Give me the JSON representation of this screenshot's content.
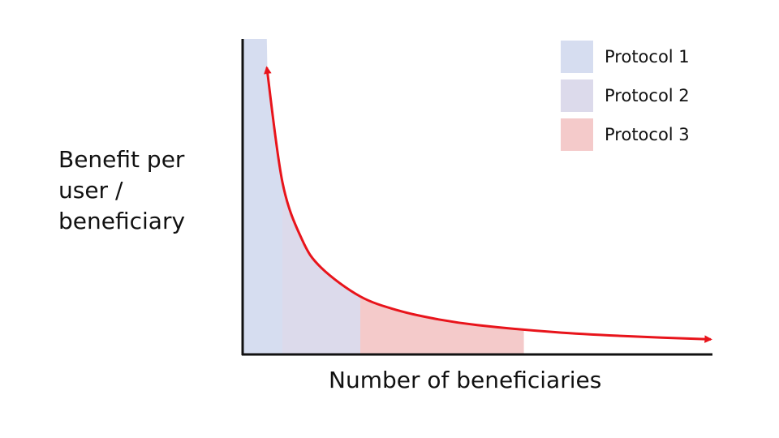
{
  "chart_data": {
    "type": "area",
    "xlabel": "Number of beneficiaries",
    "ylabel_lines": [
      "Benefit per",
      "user /",
      "beneficiary"
    ],
    "curve": {
      "x": [
        0.6,
        1,
        1.5,
        2,
        3,
        4,
        5,
        6,
        8,
        10,
        12
      ],
      "y": [
        10,
        6,
        4,
        3,
        2,
        1.5,
        1.2,
        1,
        0.75,
        0.6,
        0.5
      ]
    },
    "series": [
      {
        "name": "Protocol 1",
        "x_range": [
          0,
          1
        ],
        "color": "#D6DDF0"
      },
      {
        "name": "Protocol 2",
        "x_range": [
          1,
          3
        ],
        "color": "#DCDAEB"
      },
      {
        "name": "Protocol 3",
        "x_range": [
          3,
          7.2
        ],
        "color": "#F4CACA"
      }
    ],
    "xlim": [
      0,
      12
    ],
    "ylim": [
      0,
      11
    ],
    "curve_color": "#E8141B",
    "grid": false,
    "legend_position": "top-right"
  }
}
